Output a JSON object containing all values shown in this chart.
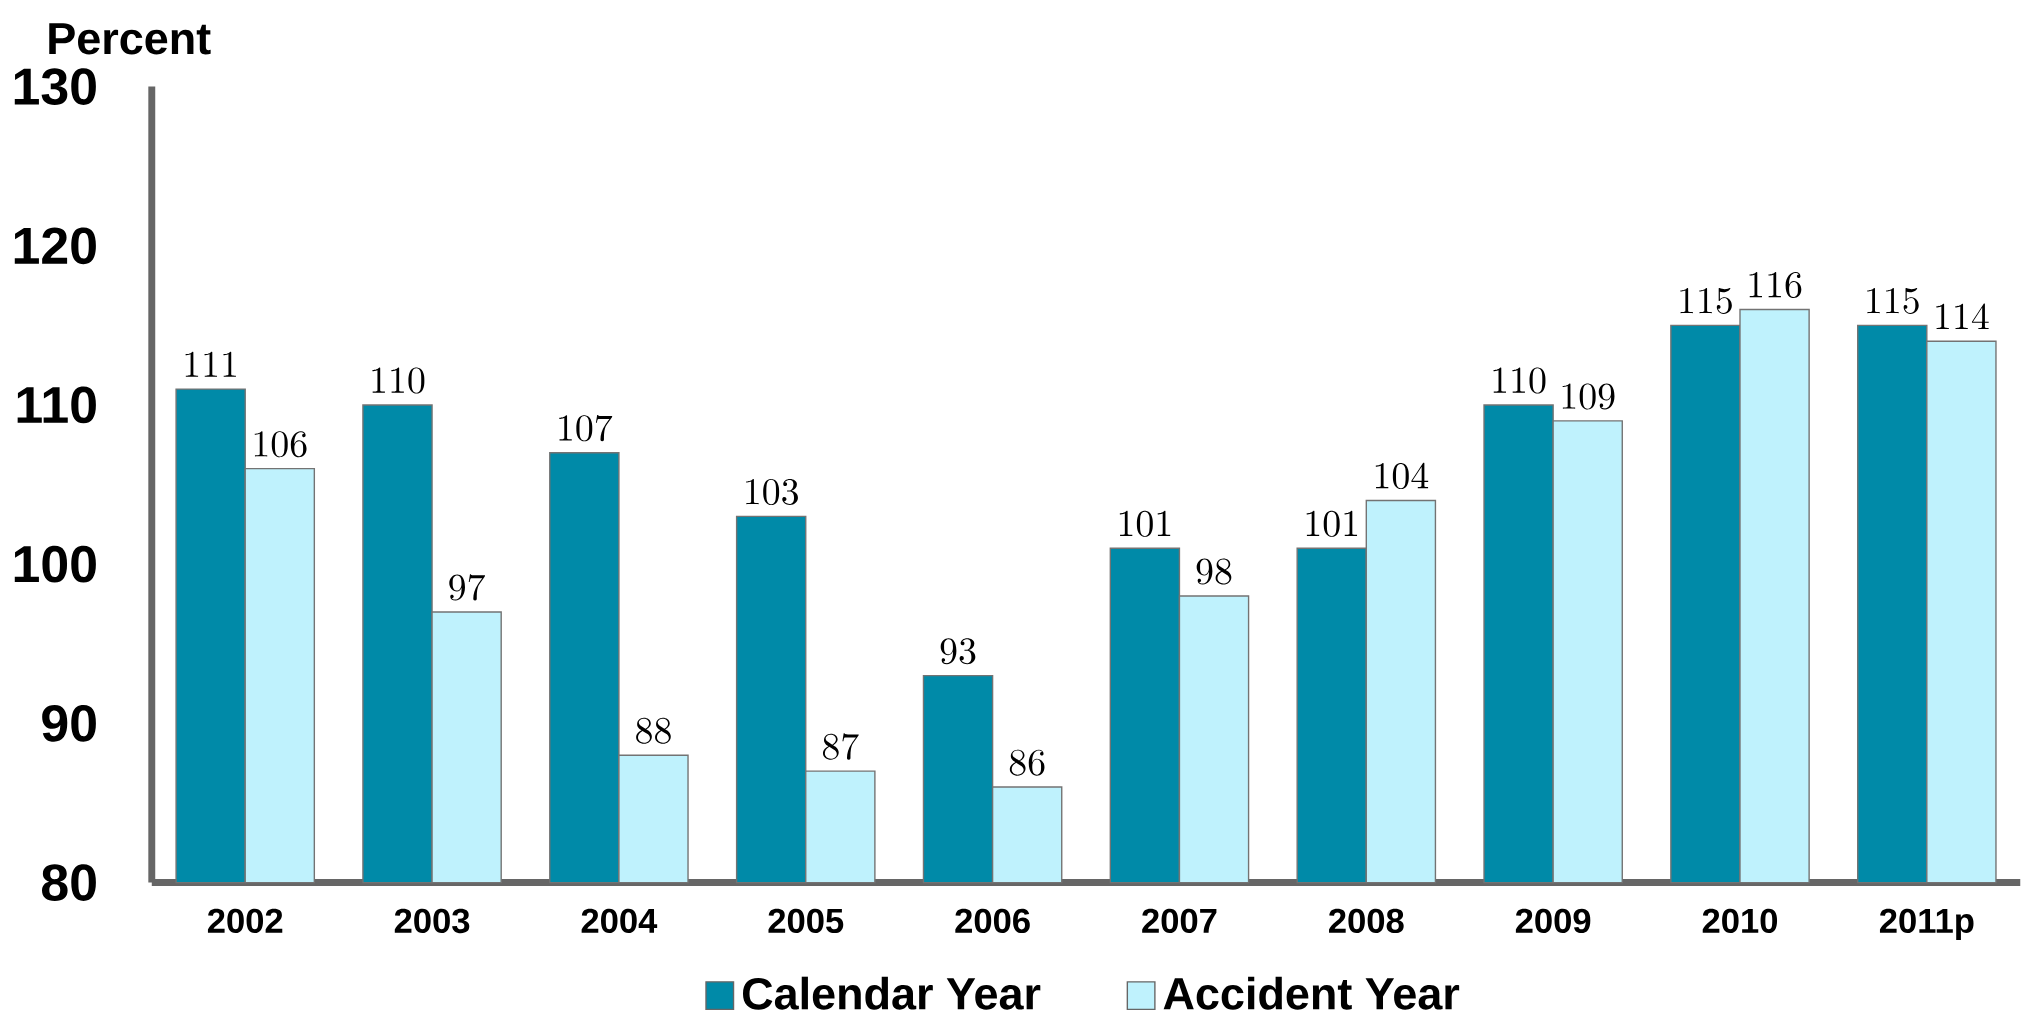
{
  "chart_data": {
    "type": "bar",
    "ylabel": "Percent",
    "categories": [
      "2002",
      "2003",
      "2004",
      "2005",
      "2006",
      "2007",
      "2008",
      "2009",
      "2010",
      "2011p"
    ],
    "series": [
      {
        "name": "Calendar Year",
        "color": "#008aa8",
        "values": [
          111,
          110,
          107,
          103,
          93,
          101,
          101,
          110,
          115,
          115
        ]
      },
      {
        "name": "Accident Year",
        "color": "#bff2fd",
        "values": [
          106,
          97,
          88,
          87,
          86,
          98,
          104,
          109,
          116,
          114
        ]
      }
    ],
    "ylim": [
      80,
      130
    ],
    "yticks": [
      80,
      90,
      100,
      110,
      120,
      130
    ],
    "grid": false,
    "legend": "bottom",
    "data_labels": true
  }
}
